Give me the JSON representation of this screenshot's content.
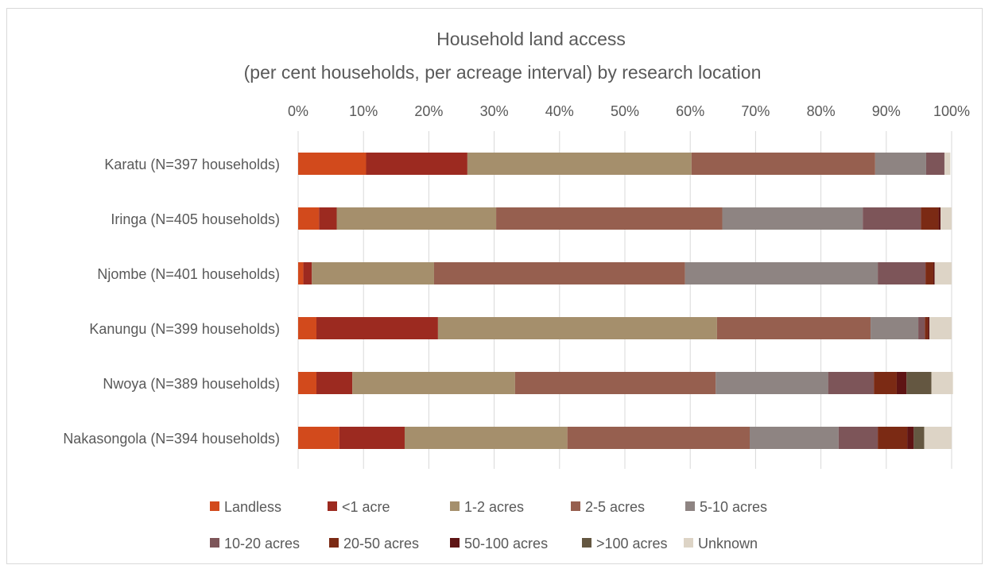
{
  "chart_data": {
    "type": "bar",
    "orientation": "horizontal",
    "stacked": "percent",
    "title": "Household land access",
    "subtitle": "(per cent households, per acreage interval) by research location",
    "xlabel": "",
    "ylabel": "",
    "xlim": [
      0,
      100
    ],
    "x_ticks": [
      "0%",
      "10%",
      "20%",
      "30%",
      "40%",
      "50%",
      "60%",
      "70%",
      "80%",
      "90%",
      "100%"
    ],
    "grid": "vertical",
    "legend_position": "bottom",
    "categories": [
      "Karatu (N=397 households)",
      "Iringa (N=405 households)",
      "Njombe (N=401 households)",
      "Kanungu (N=399 households)",
      "Nwoya (N=389 households)",
      "Nakasongola (N=394 households)"
    ],
    "series": [
      {
        "name": "Landless",
        "color": "#d24a1c",
        "values": [
          10.4,
          3.2,
          0.8,
          2.8,
          2.8,
          6.3
        ]
      },
      {
        "name": "<1 acre",
        "color": "#9c2a20",
        "values": [
          15.5,
          2.7,
          1.3,
          18.6,
          5.5,
          10.0
        ]
      },
      {
        "name": "1-2 acres",
        "color": "#a58f6c",
        "values": [
          34.3,
          24.4,
          18.7,
          42.7,
          24.9,
          24.9
        ]
      },
      {
        "name": "2-5 acres",
        "color": "#965f4f",
        "values": [
          28.1,
          34.6,
          38.4,
          23.5,
          30.7,
          27.9
        ]
      },
      {
        "name": "5-10 acres",
        "color": "#8e8482",
        "values": [
          7.8,
          21.5,
          29.5,
          7.3,
          17.2,
          13.6
        ]
      },
      {
        "name": "10-20 acres",
        "color": "#7d5559",
        "values": [
          2.8,
          8.9,
          7.3,
          1.0,
          7.0,
          6.0
        ]
      },
      {
        "name": "20-50 acres",
        "color": "#7b2a14",
        "values": [
          0.0,
          2.7,
          1.2,
          0.5,
          3.5,
          4.5
        ]
      },
      {
        "name": "50-100 acres",
        "color": "#5e1414",
        "values": [
          0.0,
          0.3,
          0.2,
          0.2,
          1.5,
          1.0
        ]
      },
      {
        "name": ">100 acres",
        "color": "#645741",
        "values": [
          0.0,
          0.0,
          0.0,
          0.0,
          3.8,
          1.6
        ]
      },
      {
        "name": "Unknown",
        "color": "#ddd4c6",
        "values": [
          0.9,
          1.7,
          2.6,
          3.4,
          3.3,
          4.2
        ]
      }
    ]
  }
}
